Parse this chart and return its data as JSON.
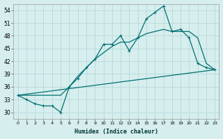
{
  "xlabel": "Humidex (Indice chaleur)",
  "ylabel": "",
  "background_color": "#d6eeee",
  "grid_color": "#b8d8d8",
  "line_color": "#007070",
  "xlim": [
    -0.5,
    23.5
  ],
  "ylim": [
    28.5,
    55.5
  ],
  "yticks": [
    30,
    33,
    36,
    39,
    42,
    45,
    48,
    51,
    54
  ],
  "xtick_labels": [
    "0",
    "1",
    "2",
    "3",
    "4",
    "5",
    "6",
    "7",
    "8",
    "9",
    "10",
    "11",
    "12",
    "13",
    "14",
    "15",
    "16",
    "17",
    "18",
    "19",
    "20",
    "21",
    "22",
    "23"
  ],
  "line1_x": [
    0,
    1,
    2,
    3,
    4,
    5,
    6,
    7,
    8,
    9,
    10,
    11,
    12,
    13,
    14,
    15,
    16,
    17,
    18,
    19,
    20,
    21,
    22,
    23
  ],
  "line1_y": [
    34.0,
    33.0,
    32.0,
    31.5,
    31.5,
    30.0,
    36.0,
    38.0,
    40.5,
    42.5,
    46.0,
    46.0,
    48.0,
    44.5,
    47.5,
    52.0,
    53.5,
    55.0,
    49.0,
    49.5,
    47.5,
    41.5,
    40.5,
    40.0
  ],
  "line2_x": [
    0,
    23
  ],
  "line2_y": [
    34.0,
    40.0
  ],
  "line3_x": [
    0,
    5,
    6,
    7,
    8,
    9,
    10,
    11,
    12,
    13,
    14,
    15,
    16,
    17,
    18,
    19,
    20,
    21,
    22,
    23
  ],
  "line3_y": [
    34.0,
    34.0,
    36.0,
    38.5,
    40.5,
    42.5,
    44.0,
    45.5,
    46.5,
    46.5,
    47.5,
    48.5,
    49.0,
    49.5,
    49.0,
    49.0,
    49.0,
    47.5,
    41.5,
    40.0
  ]
}
